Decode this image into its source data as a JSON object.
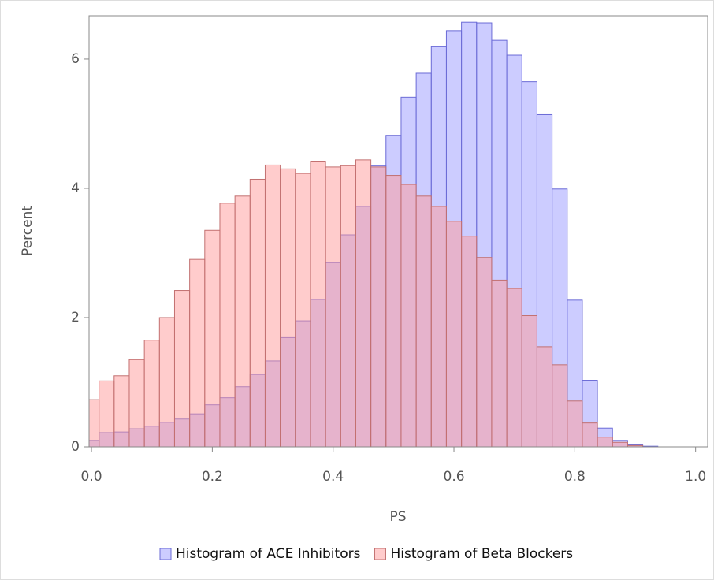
{
  "chart_data": {
    "type": "histogram",
    "xlabel": "PS",
    "ylabel": "Percent",
    "bins": [
      -0.0125,
      0.0125,
      0.0375,
      0.0625,
      0.0875,
      0.1125,
      0.1375,
      0.1625,
      0.1875,
      0.2125,
      0.2375,
      0.2625,
      0.2875,
      0.3125,
      0.3375,
      0.3625,
      0.3875,
      0.4125,
      0.4375,
      0.4625,
      0.4875,
      0.5125,
      0.5375,
      0.5625,
      0.5875,
      0.6125,
      0.6375,
      0.6625,
      0.6875,
      0.7125,
      0.7375,
      0.7625,
      0.7875,
      0.8125,
      0.8375,
      0.8625,
      0.8875,
      0.9125,
      0.9375
    ],
    "series": [
      {
        "name": "Histogram of ACE Inhibitors",
        "color": "#9a9aff",
        "stroke": "#6b6bd6",
        "values": [
          0.1,
          0.22,
          0.23,
          0.28,
          0.32,
          0.38,
          0.43,
          0.51,
          0.65,
          0.76,
          0.93,
          1.12,
          1.33,
          1.69,
          1.95,
          2.28,
          2.85,
          3.28,
          3.72,
          4.35,
          4.82,
          5.41,
          5.78,
          6.19,
          6.44,
          6.57,
          6.56,
          6.29,
          6.06,
          5.65,
          5.14,
          3.99,
          2.27,
          1.03,
          0.29,
          0.1,
          0.03,
          0.01
        ]
      },
      {
        "name": "Histogram of Beta Blockers",
        "color": "#ff9a9a",
        "stroke": "#c27070",
        "values": [
          0.73,
          1.02,
          1.1,
          1.35,
          1.65,
          2.0,
          2.42,
          2.9,
          3.35,
          3.77,
          3.88,
          4.14,
          4.36,
          4.3,
          4.23,
          4.42,
          4.33,
          4.35,
          4.44,
          4.33,
          4.2,
          4.06,
          3.88,
          3.72,
          3.49,
          3.26,
          2.93,
          2.58,
          2.45,
          2.03,
          1.55,
          1.27,
          0.71,
          0.37,
          0.15,
          0.07,
          0.02,
          0.0
        ]
      }
    ],
    "xlim": [
      -0.004,
      1.02
    ],
    "ylim": [
      0,
      6.67
    ],
    "xticks": [
      {
        "value": 0,
        "label": "0.0"
      },
      0.2,
      0.4,
      0.6,
      0.8,
      {
        "value": 1,
        "label": "1.0"
      }
    ],
    "yticks": [
      0,
      2,
      4,
      6
    ],
    "opacity": 0.5,
    "legend": "bottom"
  }
}
